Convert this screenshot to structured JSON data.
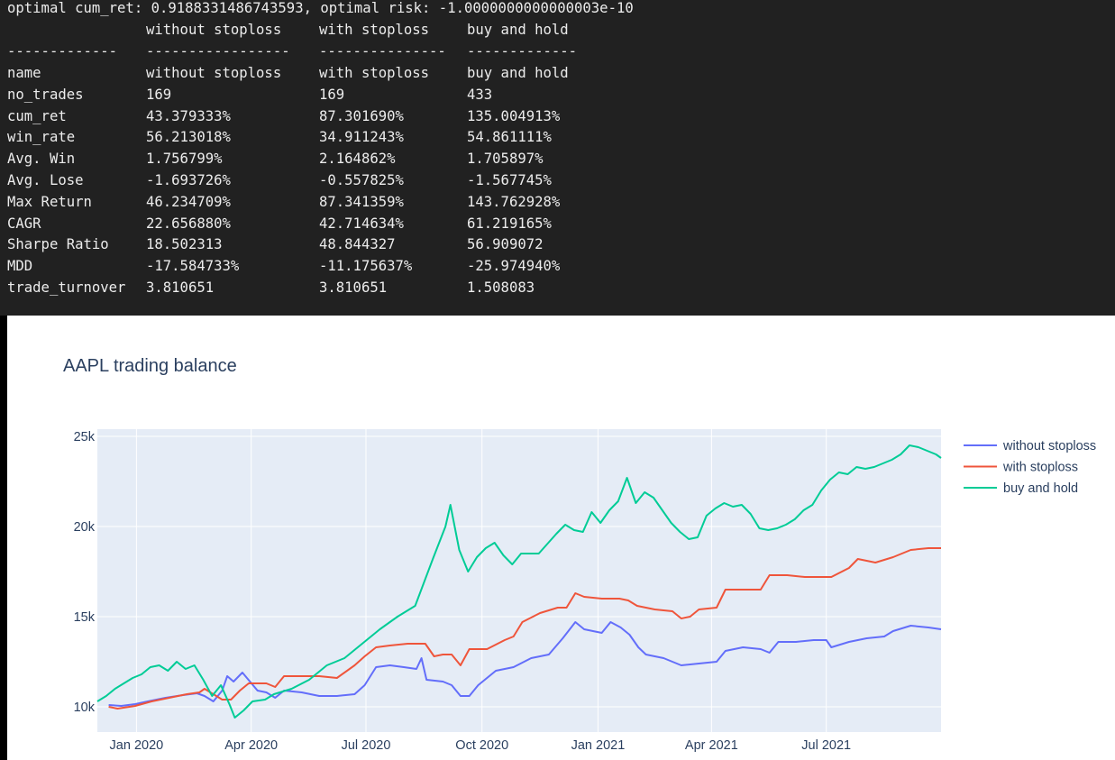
{
  "console": {
    "optimal_line": "optimal cum_ret: 0.9188331486743593, optimal risk: -1.0000000000000003e-10",
    "header": [
      "",
      "without stoploss",
      "with stoploss",
      "buy and hold"
    ],
    "separator": [
      "-------------",
      "-----------------",
      "---------------",
      "-------------"
    ],
    "rows": [
      [
        "name",
        "without stoploss",
        "with stoploss",
        "buy and hold"
      ],
      [
        "no_trades",
        "169",
        "169",
        "433"
      ],
      [
        "cum_ret",
        "43.379333%",
        "87.301690%",
        "135.004913%"
      ],
      [
        "win_rate",
        "56.213018%",
        "34.911243%",
        "54.861111%"
      ],
      [
        "Avg. Win",
        "1.756799%",
        "2.164862%",
        "1.705897%"
      ],
      [
        "Avg. Lose",
        "-1.693726%",
        "-0.557825%",
        "-1.567745%"
      ],
      [
        "Max Return",
        "46.234709%",
        "87.341359%",
        "143.762928%"
      ],
      [
        "CAGR",
        "22.656880%",
        "42.714634%",
        "61.219165%"
      ],
      [
        "Sharpe Ratio",
        "18.502313",
        "48.844327",
        "56.909072"
      ],
      [
        "MDD",
        "-17.584733%",
        "-11.175637%",
        "-25.974940%"
      ],
      [
        "trade_turnover",
        "3.810651",
        "3.810651",
        "1.508083"
      ]
    ]
  },
  "chart_data": {
    "type": "line",
    "title": "AAPL trading balance",
    "xlabel": "",
    "ylabel": "",
    "x_ticks": [
      {
        "date": "2020-01-01",
        "label": "Jan 2020"
      },
      {
        "date": "2020-04-01",
        "label": "Apr 2020"
      },
      {
        "date": "2020-07-01",
        "label": "Jul 2020"
      },
      {
        "date": "2020-10-01",
        "label": "Oct 2020"
      },
      {
        "date": "2021-01-01",
        "label": "Jan 2021"
      },
      {
        "date": "2021-04-01",
        "label": "Apr 2021"
      },
      {
        "date": "2021-07-01",
        "label": "Jul 2021"
      }
    ],
    "y_ticks": [
      {
        "value": 10000,
        "label": "10k"
      },
      {
        "value": 15000,
        "label": "15k"
      },
      {
        "value": 20000,
        "label": "20k"
      },
      {
        "value": 25000,
        "label": "25k"
      }
    ],
    "xlim": [
      "2019-12-01",
      "2021-09-30"
    ],
    "ylim": [
      8600,
      25400
    ],
    "grid": true,
    "legend": "right",
    "background": "#e5ecf6",
    "series": [
      {
        "name": "without stoploss",
        "color": "#636efa",
        "points": [
          [
            "2019-12-10",
            10100
          ],
          [
            "2019-12-20",
            10050
          ],
          [
            "2019-12-31",
            10150
          ],
          [
            "2020-01-10",
            10300
          ],
          [
            "2020-01-24",
            10500
          ],
          [
            "2020-02-07",
            10650
          ],
          [
            "2020-02-18",
            10750
          ],
          [
            "2020-02-24",
            10600
          ],
          [
            "2020-03-02",
            10300
          ],
          [
            "2020-03-09",
            10900
          ],
          [
            "2020-03-13",
            11700
          ],
          [
            "2020-03-18",
            11400
          ],
          [
            "2020-03-25",
            11900
          ],
          [
            "2020-03-31",
            11400
          ],
          [
            "2020-04-06",
            10900
          ],
          [
            "2020-04-13",
            10800
          ],
          [
            "2020-04-20",
            10500
          ],
          [
            "2020-04-27",
            10900
          ],
          [
            "2020-05-11",
            10800
          ],
          [
            "2020-05-25",
            10600
          ],
          [
            "2020-06-08",
            10600
          ],
          [
            "2020-06-22",
            10700
          ],
          [
            "2020-06-30",
            11200
          ],
          [
            "2020-07-09",
            12200
          ],
          [
            "2020-07-20",
            12300
          ],
          [
            "2020-07-31",
            12200
          ],
          [
            "2020-08-10",
            12100
          ],
          [
            "2020-08-14",
            12700
          ],
          [
            "2020-08-18",
            11500
          ],
          [
            "2020-08-31",
            11400
          ],
          [
            "2020-09-07",
            11200
          ],
          [
            "2020-09-14",
            10600
          ],
          [
            "2020-09-21",
            10600
          ],
          [
            "2020-09-28",
            11200
          ],
          [
            "2020-10-12",
            12000
          ],
          [
            "2020-10-26",
            12200
          ],
          [
            "2020-11-09",
            12700
          ],
          [
            "2020-11-23",
            12900
          ],
          [
            "2020-12-04",
            13800
          ],
          [
            "2020-12-14",
            14700
          ],
          [
            "2020-12-21",
            14300
          ],
          [
            "2021-01-04",
            14100
          ],
          [
            "2021-01-11",
            14700
          ],
          [
            "2021-01-19",
            14400
          ],
          [
            "2021-01-26",
            14000
          ],
          [
            "2021-02-02",
            13300
          ],
          [
            "2021-02-08",
            12900
          ],
          [
            "2021-02-22",
            12700
          ],
          [
            "2021-03-01",
            12500
          ],
          [
            "2021-03-08",
            12300
          ],
          [
            "2021-03-22",
            12400
          ],
          [
            "2021-04-05",
            12500
          ],
          [
            "2021-04-12",
            13100
          ],
          [
            "2021-04-26",
            13300
          ],
          [
            "2021-05-10",
            13200
          ],
          [
            "2021-05-17",
            13000
          ],
          [
            "2021-05-24",
            13600
          ],
          [
            "2021-06-07",
            13600
          ],
          [
            "2021-06-21",
            13700
          ],
          [
            "2021-07-01",
            13700
          ],
          [
            "2021-07-05",
            13300
          ],
          [
            "2021-07-19",
            13600
          ],
          [
            "2021-08-02",
            13800
          ],
          [
            "2021-08-16",
            13900
          ],
          [
            "2021-08-23",
            14200
          ],
          [
            "2021-09-06",
            14500
          ],
          [
            "2021-09-20",
            14400
          ],
          [
            "2021-09-30",
            14300
          ]
        ]
      },
      {
        "name": "with stoploss",
        "color": "#ef553b",
        "points": [
          [
            "2019-12-10",
            10000
          ],
          [
            "2019-12-17",
            9900
          ],
          [
            "2019-12-31",
            10050
          ],
          [
            "2020-01-13",
            10300
          ],
          [
            "2020-01-27",
            10500
          ],
          [
            "2020-02-10",
            10700
          ],
          [
            "2020-02-20",
            10800
          ],
          [
            "2020-02-24",
            11000
          ],
          [
            "2020-03-02",
            10700
          ],
          [
            "2020-03-09",
            10400
          ],
          [
            "2020-03-16",
            10400
          ],
          [
            "2020-03-23",
            10900
          ],
          [
            "2020-03-30",
            11300
          ],
          [
            "2020-04-13",
            11300
          ],
          [
            "2020-04-20",
            11100
          ],
          [
            "2020-04-27",
            11700
          ],
          [
            "2020-05-11",
            11700
          ],
          [
            "2020-05-25",
            11700
          ],
          [
            "2020-06-08",
            11600
          ],
          [
            "2020-06-22",
            12300
          ],
          [
            "2020-06-30",
            12800
          ],
          [
            "2020-07-09",
            13300
          ],
          [
            "2020-07-20",
            13400
          ],
          [
            "2020-08-03",
            13500
          ],
          [
            "2020-08-17",
            13500
          ],
          [
            "2020-08-24",
            12800
          ],
          [
            "2020-08-31",
            12900
          ],
          [
            "2020-09-07",
            12900
          ],
          [
            "2020-09-14",
            12300
          ],
          [
            "2020-09-21",
            13200
          ],
          [
            "2020-10-05",
            13200
          ],
          [
            "2020-10-19",
            13700
          ],
          [
            "2020-10-26",
            13900
          ],
          [
            "2020-11-02",
            14700
          ],
          [
            "2020-11-16",
            15200
          ],
          [
            "2020-11-30",
            15500
          ],
          [
            "2020-12-07",
            15500
          ],
          [
            "2020-12-14",
            16300
          ],
          [
            "2020-12-21",
            16100
          ],
          [
            "2021-01-04",
            16000
          ],
          [
            "2021-01-18",
            16000
          ],
          [
            "2021-01-25",
            15900
          ],
          [
            "2021-02-01",
            15600
          ],
          [
            "2021-02-15",
            15400
          ],
          [
            "2021-03-01",
            15300
          ],
          [
            "2021-03-08",
            14900
          ],
          [
            "2021-03-15",
            15000
          ],
          [
            "2021-03-22",
            15400
          ],
          [
            "2021-04-05",
            15500
          ],
          [
            "2021-04-12",
            16500
          ],
          [
            "2021-04-26",
            16500
          ],
          [
            "2021-05-10",
            16500
          ],
          [
            "2021-05-17",
            17300
          ],
          [
            "2021-05-31",
            17300
          ],
          [
            "2021-06-14",
            17200
          ],
          [
            "2021-07-05",
            17200
          ],
          [
            "2021-07-19",
            17700
          ],
          [
            "2021-07-26",
            18200
          ],
          [
            "2021-08-09",
            18000
          ],
          [
            "2021-08-23",
            18300
          ],
          [
            "2021-09-06",
            18700
          ],
          [
            "2021-09-20",
            18800
          ],
          [
            "2021-09-30",
            18800
          ]
        ]
      },
      {
        "name": "buy and hold",
        "color": "#00cc96",
        "points": [
          [
            "2019-12-01",
            10300
          ],
          [
            "2019-12-08",
            10600
          ],
          [
            "2019-12-15",
            11000
          ],
          [
            "2019-12-22",
            11300
          ],
          [
            "2019-12-29",
            11600
          ],
          [
            "2020-01-05",
            11800
          ],
          [
            "2020-01-12",
            12200
          ],
          [
            "2020-01-19",
            12300
          ],
          [
            "2020-01-26",
            12000
          ],
          [
            "2020-02-02",
            12500
          ],
          [
            "2020-02-09",
            12100
          ],
          [
            "2020-02-16",
            12300
          ],
          [
            "2020-02-23",
            11500
          ],
          [
            "2020-03-01",
            10600
          ],
          [
            "2020-03-08",
            11200
          ],
          [
            "2020-03-15",
            10100
          ],
          [
            "2020-03-19",
            9400
          ],
          [
            "2020-03-26",
            9800
          ],
          [
            "2020-04-02",
            10300
          ],
          [
            "2020-04-12",
            10400
          ],
          [
            "2020-04-19",
            10700
          ],
          [
            "2020-05-03",
            11000
          ],
          [
            "2020-05-17",
            11500
          ],
          [
            "2020-05-31",
            12300
          ],
          [
            "2020-06-14",
            12700
          ],
          [
            "2020-06-28",
            13500
          ],
          [
            "2020-07-12",
            14300
          ],
          [
            "2020-07-26",
            15000
          ],
          [
            "2020-08-09",
            15600
          ],
          [
            "2020-08-23",
            18200
          ],
          [
            "2020-09-02",
            20000
          ],
          [
            "2020-09-06",
            21200
          ],
          [
            "2020-09-13",
            18700
          ],
          [
            "2020-09-20",
            17500
          ],
          [
            "2020-09-27",
            18300
          ],
          [
            "2020-10-04",
            18800
          ],
          [
            "2020-10-11",
            19100
          ],
          [
            "2020-10-18",
            18400
          ],
          [
            "2020-10-25",
            17900
          ],
          [
            "2020-11-01",
            18500
          ],
          [
            "2020-11-15",
            18500
          ],
          [
            "2020-11-29",
            19600
          ],
          [
            "2020-12-06",
            20100
          ],
          [
            "2020-12-13",
            19800
          ],
          [
            "2020-12-20",
            19700
          ],
          [
            "2020-12-27",
            20800
          ],
          [
            "2021-01-03",
            20200
          ],
          [
            "2021-01-10",
            20900
          ],
          [
            "2021-01-17",
            21400
          ],
          [
            "2021-01-24",
            22700
          ],
          [
            "2021-01-31",
            21300
          ],
          [
            "2021-02-07",
            21900
          ],
          [
            "2021-02-14",
            21600
          ],
          [
            "2021-02-21",
            20900
          ],
          [
            "2021-02-28",
            20200
          ],
          [
            "2021-03-07",
            19700
          ],
          [
            "2021-03-14",
            19300
          ],
          [
            "2021-03-21",
            19400
          ],
          [
            "2021-03-28",
            20600
          ],
          [
            "2021-04-04",
            21000
          ],
          [
            "2021-04-11",
            21300
          ],
          [
            "2021-04-18",
            21100
          ],
          [
            "2021-04-25",
            21200
          ],
          [
            "2021-05-02",
            20700
          ],
          [
            "2021-05-09",
            19900
          ],
          [
            "2021-05-16",
            19800
          ],
          [
            "2021-05-23",
            19900
          ],
          [
            "2021-05-30",
            20100
          ],
          [
            "2021-06-06",
            20400
          ],
          [
            "2021-06-13",
            20900
          ],
          [
            "2021-06-20",
            21200
          ],
          [
            "2021-06-27",
            22000
          ],
          [
            "2021-07-04",
            22600
          ],
          [
            "2021-07-11",
            23000
          ],
          [
            "2021-07-18",
            22900
          ],
          [
            "2021-07-25",
            23300
          ],
          [
            "2021-08-01",
            23200
          ],
          [
            "2021-08-08",
            23300
          ],
          [
            "2021-08-15",
            23500
          ],
          [
            "2021-08-22",
            23700
          ],
          [
            "2021-08-29",
            24000
          ],
          [
            "2021-09-05",
            24500
          ],
          [
            "2021-09-12",
            24400
          ],
          [
            "2021-09-19",
            24200
          ],
          [
            "2021-09-26",
            24000
          ],
          [
            "2021-09-30",
            23800
          ]
        ]
      }
    ]
  }
}
